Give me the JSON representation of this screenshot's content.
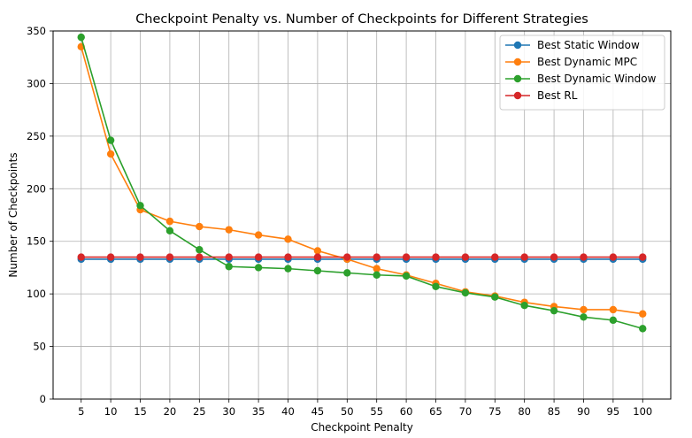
{
  "chart_data": {
    "type": "line",
    "title": "Checkpoint Penalty vs. Number of Checkpoints for Different Strategies",
    "xlabel": "Checkpoint Penalty",
    "ylabel": "Number of Checkpoints",
    "x": [
      5,
      10,
      15,
      20,
      25,
      30,
      35,
      40,
      45,
      50,
      55,
      60,
      65,
      70,
      75,
      80,
      85,
      90,
      95,
      100
    ],
    "x_ticks": [
      "5",
      "10",
      "15",
      "20",
      "25",
      "30",
      "35",
      "40",
      "45",
      "50",
      "55",
      "60",
      "65",
      "70",
      "75",
      "80",
      "85",
      "90",
      "95",
      "100"
    ],
    "ylim": [
      0,
      350
    ],
    "y_ticks": [
      "0",
      "50",
      "100",
      "150",
      "200",
      "250",
      "300",
      "350"
    ],
    "y_tick_values": [
      0,
      50,
      100,
      150,
      200,
      250,
      300,
      350
    ],
    "grid": true,
    "legend_position": "top-right",
    "series": [
      {
        "name": "Best Static Window",
        "color": "#1f77b4",
        "values": [
          133,
          133,
          133,
          133,
          133,
          133,
          133,
          133,
          133,
          133,
          133,
          133,
          133,
          133,
          133,
          133,
          133,
          133,
          133,
          133
        ]
      },
      {
        "name": "Best Dynamic MPC",
        "color": "#ff7f0e",
        "values": [
          335,
          233,
          180,
          169,
          164,
          161,
          156,
          152,
          141,
          133,
          124,
          118,
          110,
          102,
          98,
          92,
          88,
          85,
          85,
          81
        ]
      },
      {
        "name": "Best Dynamic Window",
        "color": "#2ca02c",
        "values": [
          344,
          246,
          184,
          160,
          142,
          126,
          125,
          124,
          122,
          120,
          118,
          117,
          107,
          101,
          97,
          89,
          84,
          78,
          75,
          67
        ]
      },
      {
        "name": "Best RL",
        "color": "#d62728",
        "values": [
          135,
          135,
          135,
          135,
          135,
          135,
          135,
          135,
          135,
          135,
          135,
          135,
          135,
          135,
          135,
          135,
          135,
          135,
          135,
          135
        ]
      }
    ]
  }
}
